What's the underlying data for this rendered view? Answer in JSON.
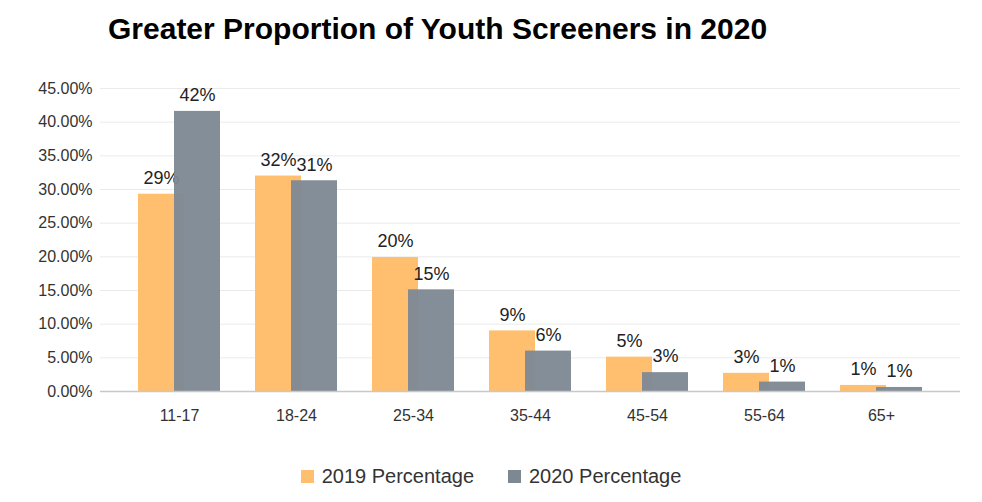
{
  "chart_data": {
    "type": "bar",
    "title": "Greater Proportion of Youth Screeners in 2020",
    "categories": [
      "11-17",
      "18-24",
      "25-34",
      "35-44",
      "45-54",
      "55-64",
      "65+"
    ],
    "series": [
      {
        "name": "2019 Percentage",
        "color": "#ffbf6e",
        "values": [
          29.3,
          32.0,
          19.9,
          9.0,
          5.1,
          2.7,
          0.9
        ],
        "value_labels": [
          "29%",
          "32%",
          "20%",
          "9%",
          "5%",
          "3%",
          "1%"
        ]
      },
      {
        "name": "2020 Percentage",
        "color": "#7d8893",
        "values": [
          41.6,
          31.3,
          15.1,
          6.0,
          2.8,
          1.4,
          0.6
        ],
        "value_labels": [
          "42%",
          "31%",
          "15%",
          "6%",
          "3%",
          "1%",
          "1%"
        ]
      }
    ],
    "ylim": [
      0,
      45
    ],
    "yticks": [
      {
        "value": 0,
        "label": "0.00%"
      },
      {
        "value": 5,
        "label": "5.00%"
      },
      {
        "value": 10,
        "label": "10.00%"
      },
      {
        "value": 15,
        "label": "15.00%"
      },
      {
        "value": 20,
        "label": "20.00%"
      },
      {
        "value": 25,
        "label": "25.00%"
      },
      {
        "value": 30,
        "label": "30.00%"
      },
      {
        "value": 35,
        "label": "35.00%"
      },
      {
        "value": 40,
        "label": "40.00%"
      },
      {
        "value": 45,
        "label": "45.00%"
      }
    ],
    "grid": true,
    "data_labels": true,
    "legend": "bottom"
  }
}
